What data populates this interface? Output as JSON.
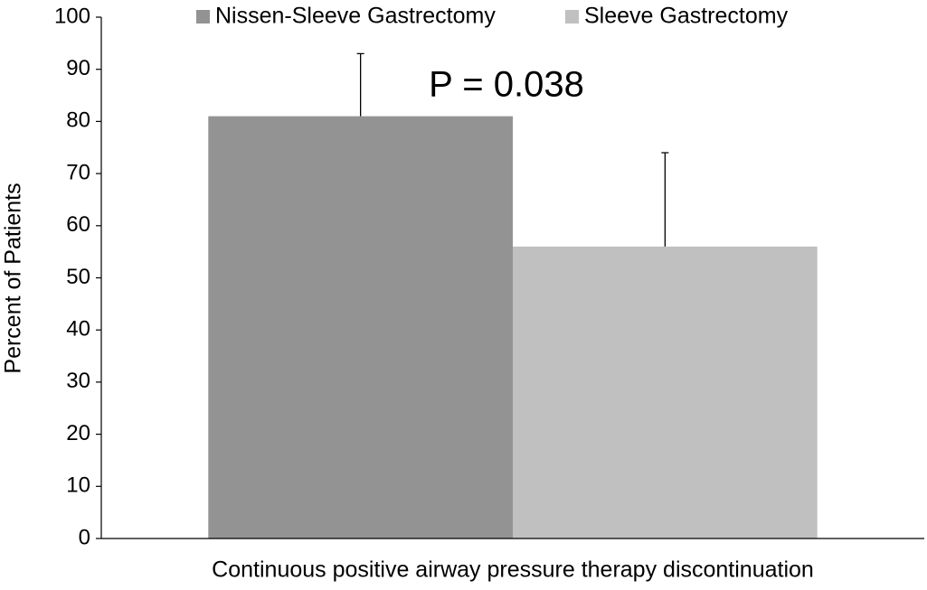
{
  "chart_data": {
    "type": "bar",
    "categories": [
      "Continuous positive airway pressure therapy discontinuation"
    ],
    "series": [
      {
        "name": "Nissen-Sleeve Gastrectomy",
        "color": "#939393",
        "values": [
          81
        ],
        "errors": [
          12
        ]
      },
      {
        "name": "Sleeve Gastrectomy",
        "color": "#c0c0c0",
        "values": [
          56
        ],
        "errors": [
          18
        ]
      }
    ],
    "y_label": "Percent of Patients",
    "annotations": [
      {
        "text": "P = 0.038"
      }
    ],
    "ylim": [
      0,
      100
    ],
    "yticks": [
      0,
      10,
      20,
      30,
      40,
      50,
      60,
      70,
      80,
      90,
      100
    ],
    "grid": false,
    "legend": "top"
  }
}
